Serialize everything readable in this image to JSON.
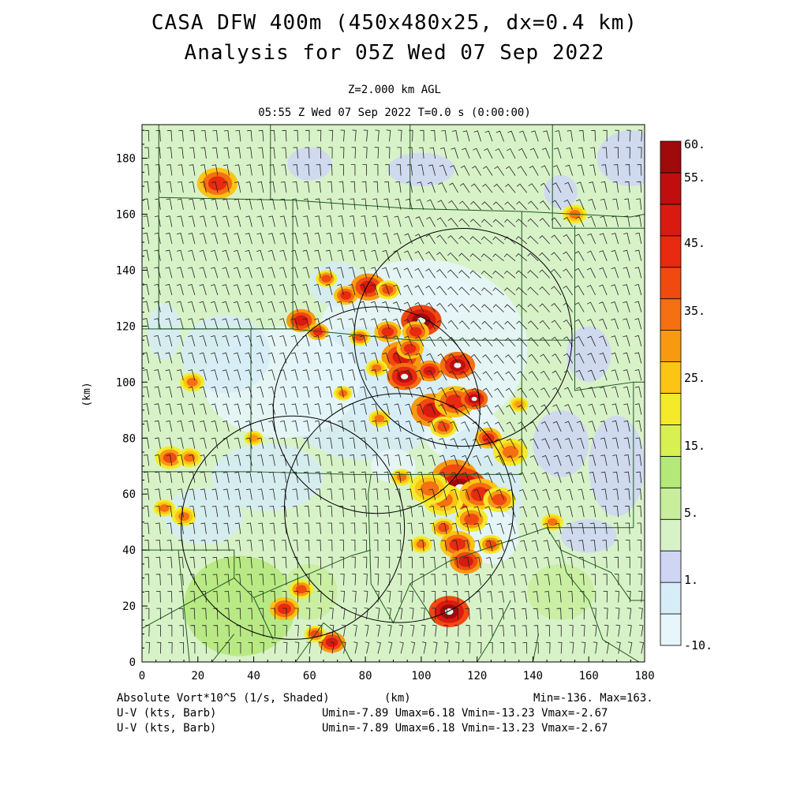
{
  "title": {
    "line1": "CASA DFW 400m (450x480x25, dx=0.4 km)",
    "line2": "Analysis for 05Z Wed 07 Sep 2022"
  },
  "subtitle": {
    "level": "Z=2.000 km AGL",
    "time": "05:55 Z Wed 07 Sep 2022    T=0.0 s (0:00:00)"
  },
  "axes": {
    "x_label": "(km)",
    "y_label": "(km)",
    "x_ticks": [
      0,
      20,
      40,
      60,
      80,
      100,
      120,
      140,
      160,
      180
    ],
    "y_ticks": [
      0,
      20,
      40,
      60,
      80,
      100,
      120,
      140,
      160,
      180
    ],
    "x_range": [
      0,
      180
    ],
    "y_range": [
      0,
      192
    ]
  },
  "colorbar": {
    "labels": [
      "60.",
      "55.",
      "45.",
      "35.",
      "25.",
      "15.",
      "5.",
      "1.",
      "-10."
    ],
    "colors": [
      "#e6f6fb",
      "#d6ecf7",
      "#cfd6f4",
      "#d8f2c8",
      "#c8ee9c",
      "#b4e878",
      "#d8f050",
      "#f4ea2a",
      "#fcc414",
      "#f89a10",
      "#f47010",
      "#f04a10",
      "#e82a10",
      "#d81a10",
      "#c00e0e",
      "#a00a0a"
    ]
  },
  "radars": [
    {
      "cx": 115,
      "cy": 116,
      "r": 39
    },
    {
      "cx": 84,
      "cy": 90,
      "r": 37
    },
    {
      "cx": 54,
      "cy": 48,
      "r": 40
    },
    {
      "cx": 92,
      "cy": 55,
      "r": 41
    }
  ],
  "footer": {
    "field": "Absolute Vort*10^5 (1/s, Shaded)",
    "x_unit": "(km)",
    "minmax": "Min=-136. Max=163.",
    "barb1_label": "U-V (kts, Barb)",
    "barb1_stats": "Umin=-7.89 Umax=6.18 Vmin=-13.23 Vmax=-2.67",
    "barb2_label": "U-V (kts, Barb)",
    "barb2_stats": "Umin=-7.89 Umax=6.18 Vmin=-13.23 Vmax=-2.67"
  }
}
